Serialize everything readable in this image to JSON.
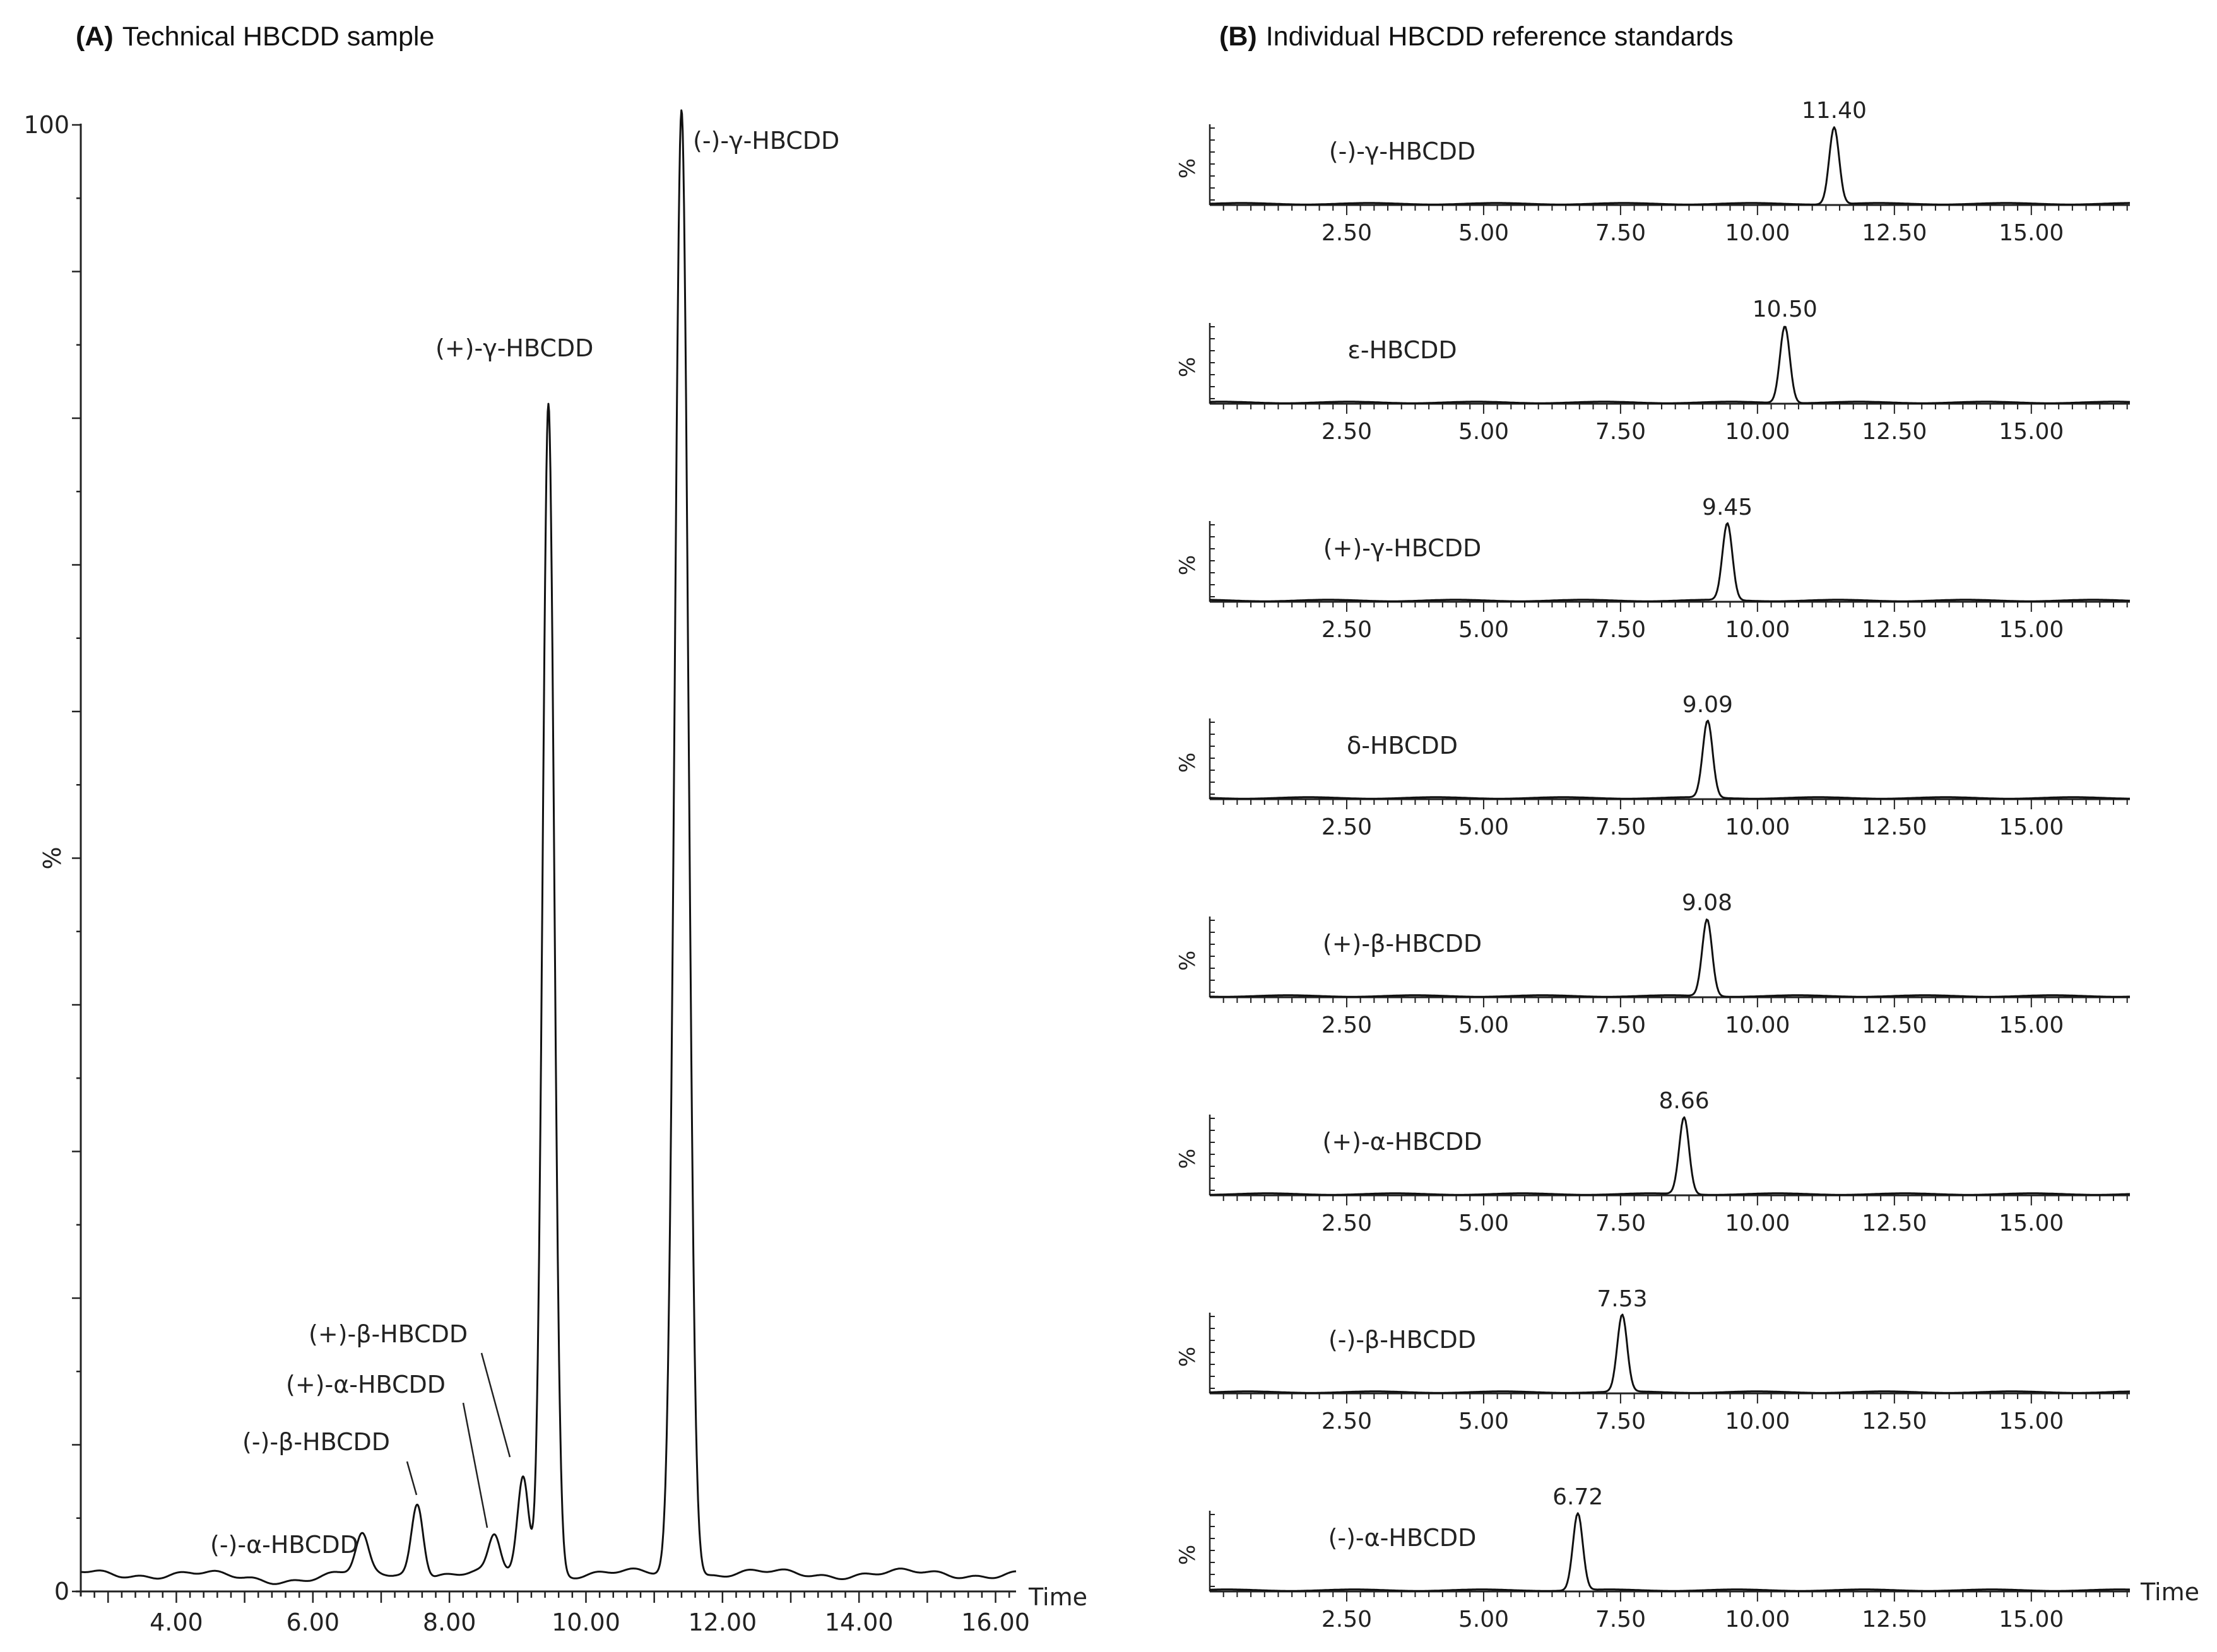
{
  "chart_data": [
    {
      "panel": "A",
      "type": "line",
      "title_tag": "(A)",
      "title": "Technical HBCDD sample",
      "xlabel": "Time",
      "ylabel": "%",
      "xlim": [
        2.6,
        16.3
      ],
      "ylim": [
        0,
        100
      ],
      "xticks": [
        "4.00",
        "6.00",
        "8.00",
        "10.00",
        "12.00",
        "14.00",
        "16.00"
      ],
      "yticks": [
        "0",
        "100"
      ],
      "baseline": 1.2,
      "peaks": [
        {
          "label": "(-)-α-HBCDD",
          "x": 6.72,
          "height": 2.5
        },
        {
          "label": "(-)-β-HBCDD",
          "x": 7.53,
          "height": 5.0
        },
        {
          "label": "(+)-α-HBCDD",
          "x": 8.66,
          "height": 2.5
        },
        {
          "label": "(+)-β-HBCDD",
          "x": 9.08,
          "height": 6.5
        },
        {
          "label": "(+)-γ-HBCDD",
          "x": 9.45,
          "height": 80.0
        },
        {
          "label": "(-)-γ-HBCDD",
          "x": 11.4,
          "height": 100.0
        }
      ]
    },
    {
      "panel": "B",
      "type": "line",
      "title_tag": "(B)",
      "title": "Individual HBCDD reference standards",
      "xlabel": "Time",
      "ylabel": "%",
      "xlim": [
        0,
        16.8
      ],
      "xticks": [
        "2.50",
        "5.00",
        "7.50",
        "10.00",
        "12.50",
        "15.00"
      ],
      "series": [
        {
          "name": "(-)-γ-HBCDD",
          "peak_label": "11.40",
          "retention_time": 11.4
        },
        {
          "name": "ε-HBCDD",
          "peak_label": "10.50",
          "retention_time": 10.5
        },
        {
          "name": "(+)-γ-HBCDD",
          "peak_label": "9.45",
          "retention_time": 9.45
        },
        {
          "name": "δ-HBCDD",
          "peak_label": "9.09",
          "retention_time": 9.09
        },
        {
          "name": "(+)-β-HBCDD",
          "peak_label": "9.08",
          "retention_time": 9.08
        },
        {
          "name": "(+)-α-HBCDD",
          "peak_label": "8.66",
          "retention_time": 8.66
        },
        {
          "name": "(-)-β-HBCDD",
          "peak_label": "7.53",
          "retention_time": 7.53
        },
        {
          "name": "(-)-α-HBCDD",
          "peak_label": "6.72",
          "retention_time": 6.72
        }
      ]
    }
  ]
}
